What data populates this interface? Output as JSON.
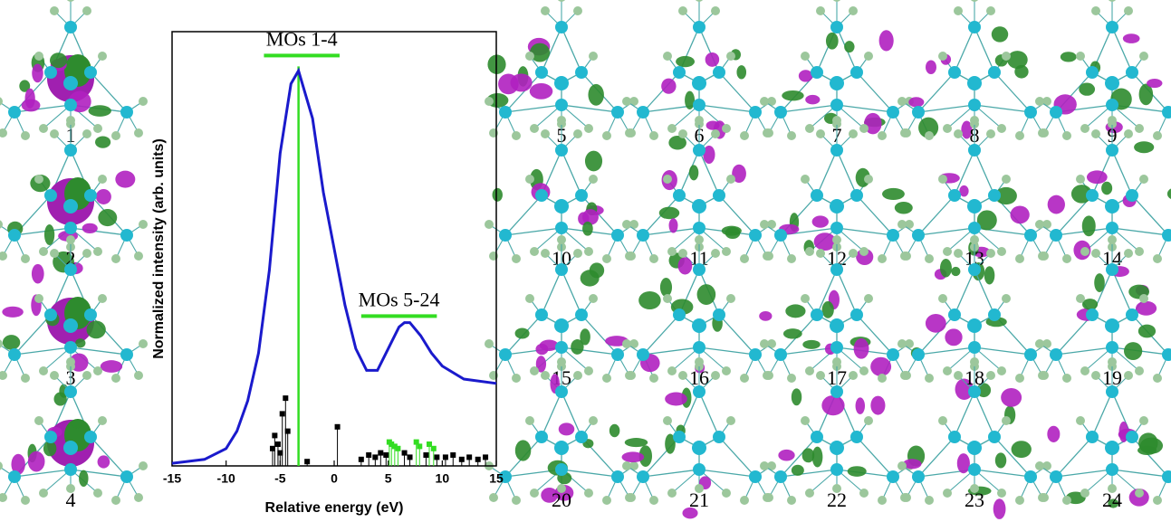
{
  "chart_data": {
    "type": "line",
    "xlabel": "Relative energy (eV)",
    "ylabel": "Normalized intensity (arb. units)",
    "xlim": [
      -15,
      15
    ],
    "xticks": [
      -15,
      -10,
      -5,
      0,
      5,
      10,
      15
    ],
    "ylim": [
      0,
      1
    ],
    "series": [
      {
        "type": "line",
        "color": "#1a1acc",
        "x": [
          -15,
          -12,
          -10,
          -9,
          -8,
          -7,
          -6,
          -5,
          -4,
          -3.3,
          -2,
          -1,
          0,
          1,
          2,
          3,
          4,
          5,
          6,
          6.5,
          7,
          8,
          9,
          10,
          12,
          15
        ],
        "values": [
          0.006,
          0.015,
          0.04,
          0.08,
          0.15,
          0.26,
          0.45,
          0.72,
          0.88,
          0.91,
          0.8,
          0.63,
          0.5,
          0.37,
          0.27,
          0.22,
          0.22,
          0.27,
          0.32,
          0.33,
          0.33,
          0.3,
          0.26,
          0.23,
          0.2,
          0.19
        ]
      },
      {
        "type": "stem",
        "color": "#000000",
        "x": [
          -5.7,
          -5.5,
          -5.2,
          -5,
          -4.8,
          -4.5,
          -4.3,
          -2.5,
          0.3,
          2.5,
          3.2,
          3.8,
          4.3,
          4.8,
          6.5,
          7,
          8.5,
          9.5,
          10.3,
          11,
          11.8,
          12.5,
          13.3,
          14
        ],
        "values": [
          0.04,
          0.07,
          0.05,
          0.03,
          0.12,
          0.156,
          0.08,
          0.01,
          0.09,
          0.015,
          0.025,
          0.02,
          0.03,
          0.025,
          0.03,
          0.02,
          0.025,
          0.02,
          0.02,
          0.025,
          0.015,
          0.02,
          0.015,
          0.02
        ]
      },
      {
        "type": "stem",
        "color": "#33dd22",
        "x": [
          5.1,
          5.3,
          5.6,
          5.9,
          7.6,
          7.9,
          8.8,
          9.2
        ],
        "values": [
          0.055,
          0.05,
          0.045,
          0.04,
          0.055,
          0.045,
          0.05,
          0.04
        ]
      }
    ],
    "markers": [
      {
        "x": -3.3,
        "y": 0.92,
        "color": "#33dd22"
      }
    ],
    "annotations": [
      {
        "text": "MOs 1-4",
        "x": [
          -6.5,
          0.5
        ],
        "y": 0.945,
        "color": "#33dd22"
      },
      {
        "text": "MOs 5-24",
        "x": [
          2.5,
          9.5
        ],
        "y": 0.345,
        "color": "#33dd22"
      }
    ]
  },
  "orbitals": [
    "1",
    "2",
    "3",
    "4",
    "5",
    "6",
    "7",
    "8",
    "9",
    "10",
    "11",
    "12",
    "13",
    "14",
    "15",
    "16",
    "17",
    "18",
    "19",
    "20",
    "21",
    "22",
    "23",
    "24"
  ]
}
